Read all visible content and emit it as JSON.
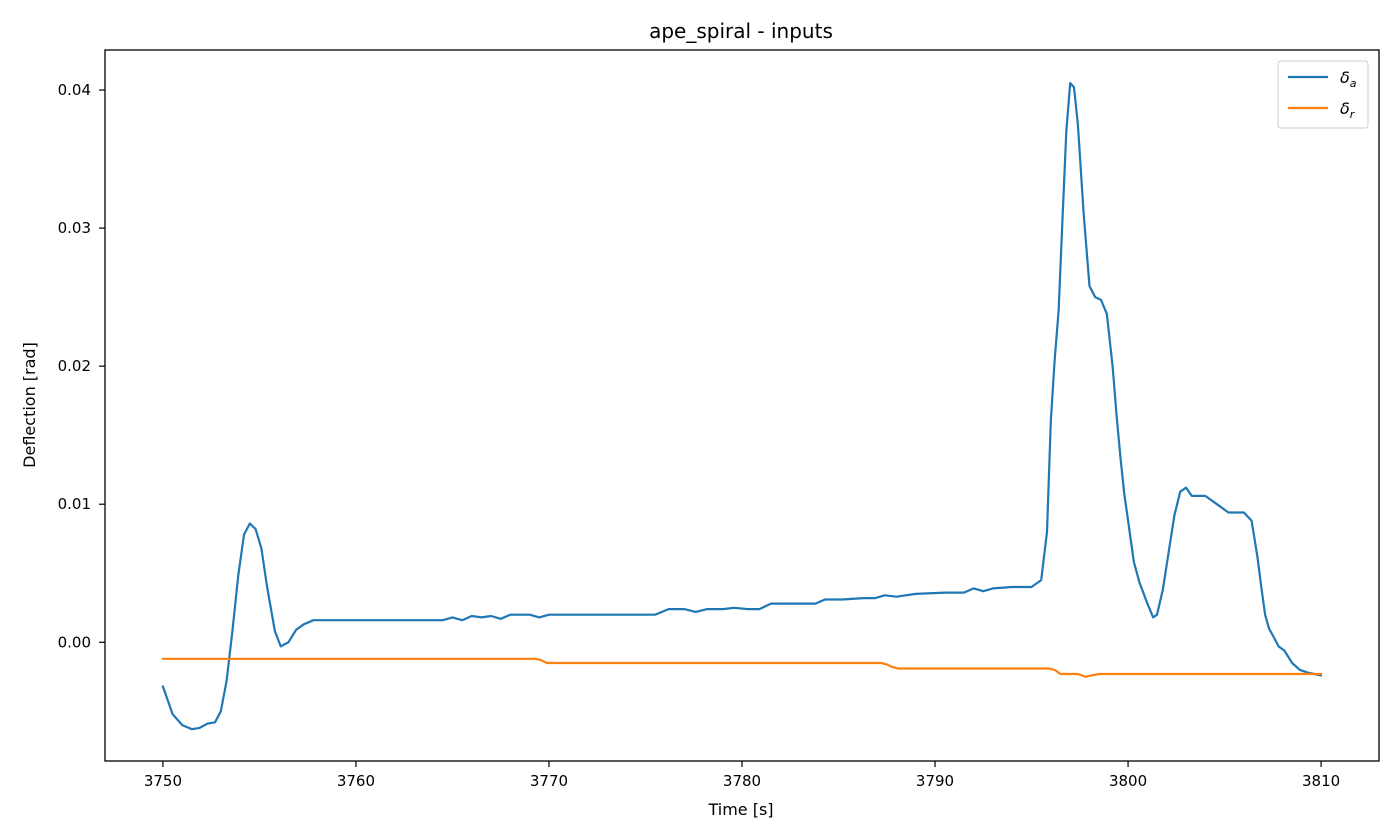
{
  "chart_data": {
    "type": "line",
    "title": "ape_spiral - inputs",
    "xlabel": "Time [s]",
    "ylabel": "Deflection [rad]",
    "xlim": [
      3747,
      3813
    ],
    "ylim": [
      -0.0086,
      0.0429
    ],
    "xticks": [
      3750,
      3760,
      3770,
      3780,
      3790,
      3800,
      3810
    ],
    "xtick_labels": [
      "3750",
      "3760",
      "3770",
      "3780",
      "3790",
      "3800",
      "3810"
    ],
    "yticks": [
      0.0,
      0.01,
      0.02,
      0.03,
      0.04
    ],
    "ytick_labels": [
      "0.00",
      "0.01",
      "0.02",
      "0.03",
      "0.04"
    ],
    "grid": false,
    "legend": "top-right",
    "series": [
      {
        "name": "δ",
        "subscript": "a",
        "color": "#1f77b4",
        "x": [
          3750.0,
          3750.5,
          3751.0,
          3751.5,
          3751.9,
          3752.3,
          3752.7,
          3753.0,
          3753.3,
          3753.6,
          3753.9,
          3754.2,
          3754.5,
          3754.8,
          3755.1,
          3755.4,
          3755.8,
          3756.1,
          3756.5,
          3756.9,
          3757.3,
          3757.8,
          3758.5,
          3760.0,
          3762.0,
          3764.0,
          3764.5,
          3765.0,
          3765.5,
          3766.0,
          3766.5,
          3767.0,
          3767.5,
          3768.0,
          3768.5,
          3769.0,
          3769.5,
          3770.0,
          3772.0,
          3774.0,
          3775.5,
          3776.2,
          3777.0,
          3777.6,
          3778.2,
          3779.0,
          3779.6,
          3780.3,
          3780.9,
          3781.5,
          3783.0,
          3783.8,
          3784.3,
          3785.2,
          3786.3,
          3786.9,
          3787.4,
          3788.0,
          3789.0,
          3790.5,
          3791.5,
          3792.0,
          3792.5,
          3793.0,
          3794.0,
          3795.0,
          3795.5,
          3795.8,
          3796.0,
          3796.2,
          3796.4,
          3796.6,
          3796.8,
          3797.0,
          3797.2,
          3797.4,
          3797.7,
          3798.0,
          3798.3,
          3798.6,
          3798.9,
          3799.2,
          3799.4,
          3799.6,
          3799.8,
          3800.0,
          3800.3,
          3800.6,
          3801.0,
          3801.3,
          3801.5,
          3801.8,
          3802.1,
          3802.4,
          3802.7,
          3803.0,
          3803.3,
          3803.6,
          3804.0,
          3804.6,
          3805.2,
          3805.6,
          3806.0,
          3806.4,
          3806.7,
          3806.9,
          3807.1,
          3807.3,
          3807.5,
          3807.8,
          3808.1,
          3808.5,
          3808.9,
          3809.3,
          3810.0
        ],
        "y": [
          -0.0032,
          -0.0052,
          -0.006,
          -0.0063,
          -0.0062,
          -0.0059,
          -0.0058,
          -0.005,
          -0.0028,
          0.0008,
          0.0048,
          0.0078,
          0.0086,
          0.0082,
          0.0068,
          0.004,
          0.0008,
          -0.0003,
          0.0,
          0.0009,
          0.0013,
          0.0016,
          0.0016,
          0.0016,
          0.0016,
          0.0016,
          0.0016,
          0.0018,
          0.0016,
          0.0019,
          0.0018,
          0.0019,
          0.0017,
          0.002,
          0.002,
          0.002,
          0.0018,
          0.002,
          0.002,
          0.002,
          0.002,
          0.0024,
          0.0024,
          0.0022,
          0.0024,
          0.0024,
          0.0025,
          0.0024,
          0.0024,
          0.0028,
          0.0028,
          0.0028,
          0.0031,
          0.0031,
          0.0032,
          0.0032,
          0.0034,
          0.0033,
          0.0035,
          0.0036,
          0.0036,
          0.0039,
          0.0037,
          0.0039,
          0.004,
          0.004,
          0.0045,
          0.008,
          0.016,
          0.0205,
          0.024,
          0.0305,
          0.037,
          0.0405,
          0.0402,
          0.0375,
          0.031,
          0.0258,
          0.025,
          0.0248,
          0.0238,
          0.02,
          0.0165,
          0.0135,
          0.0108,
          0.0088,
          0.0058,
          0.0043,
          0.0028,
          0.0018,
          0.002,
          0.0038,
          0.0065,
          0.0092,
          0.0109,
          0.0112,
          0.0106,
          0.0106,
          0.0106,
          0.01,
          0.0094,
          0.0094,
          0.0094,
          0.0088,
          0.0062,
          0.004,
          0.002,
          0.001,
          0.0005,
          -0.0003,
          -0.0006,
          -0.0015,
          -0.002,
          -0.0022,
          -0.0024
        ]
      },
      {
        "name": "δ",
        "subscript": "r",
        "color": "#ff7f0e",
        "x": [
          3750.0,
          3769.0,
          3769.3,
          3769.6,
          3769.9,
          3770.2,
          3787.2,
          3787.5,
          3787.8,
          3788.1,
          3795.9,
          3796.2,
          3796.5,
          3797.4,
          3797.8,
          3798.1,
          3798.5,
          3799.0,
          3810.0
        ],
        "y": [
          -0.0012,
          -0.0012,
          -0.0012,
          -0.0013,
          -0.0015,
          -0.0015,
          -0.0015,
          -0.0016,
          -0.0018,
          -0.0019,
          -0.0019,
          -0.002,
          -0.0023,
          -0.0023,
          -0.0025,
          -0.0024,
          -0.0023,
          -0.0023,
          -0.0023
        ]
      }
    ]
  }
}
